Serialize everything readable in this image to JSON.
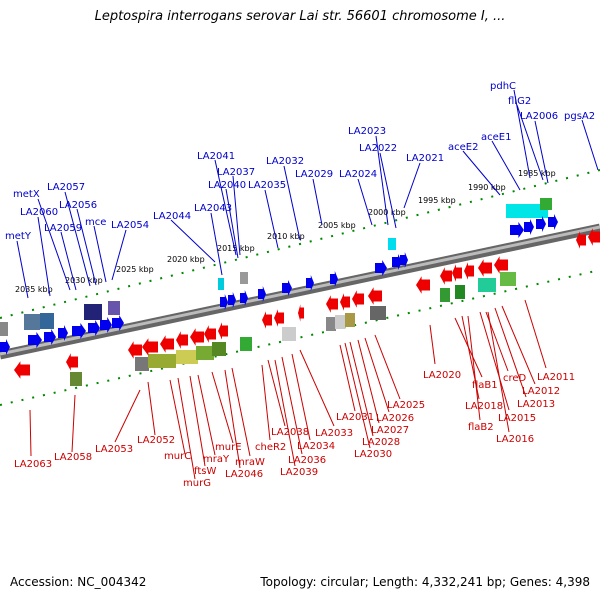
{
  "title": "Leptospira interrogans serovar Lai str. 56601 chromosome I, ...",
  "accession": "Accession: NC_004342",
  "topology": "Topology: circular; Length: 4,332,241 bp; Genes: 4,398",
  "colors": {
    "forward": "#0000ee",
    "reverse": "#ee0000",
    "backbone": "#888888",
    "tick": "#008800"
  },
  "kbp_ticks": [
    "1985 kbp",
    "1990 kbp",
    "1995 kbp",
    "2000 kbp",
    "2005 kbp",
    "2010 kbp",
    "2015 kbp",
    "2020 kbp",
    "2025 kbp",
    "2030 kbp",
    "2035 kbp"
  ],
  "genes_top": [
    "pdhC",
    "fliG2",
    "LA2006",
    "pgsA2",
    "aceE1",
    "aceE2",
    "LA2023",
    "LA2022",
    "LA2021",
    "LA2041",
    "LA2037",
    "LA2040",
    "LA2032",
    "LA2035",
    "LA2029",
    "LA2024",
    "LA2057",
    "metX",
    "LA2056",
    "LA2060",
    "mce",
    "LA2059",
    "LA2054",
    "LA2044",
    "LA2043",
    "metY"
  ],
  "genes_bottom": [
    "LA2011",
    "LA2020",
    "flaB1",
    "creD",
    "LA2012",
    "LA2018",
    "LA2013",
    "LA2015",
    "flaB2",
    "LA2016",
    "LA2025",
    "LA2026",
    "LA2031",
    "LA2027",
    "LA2033",
    "LA2028",
    "LA2038",
    "LA2030",
    "cheR2",
    "LA2034",
    "LA2036",
    "LA2039",
    "mraW",
    "LA2046",
    "murE",
    "mraY",
    "ftsW",
    "murC",
    "murG",
    "LA2052",
    "LA2053",
    "LA2058",
    "LA2063"
  ]
}
